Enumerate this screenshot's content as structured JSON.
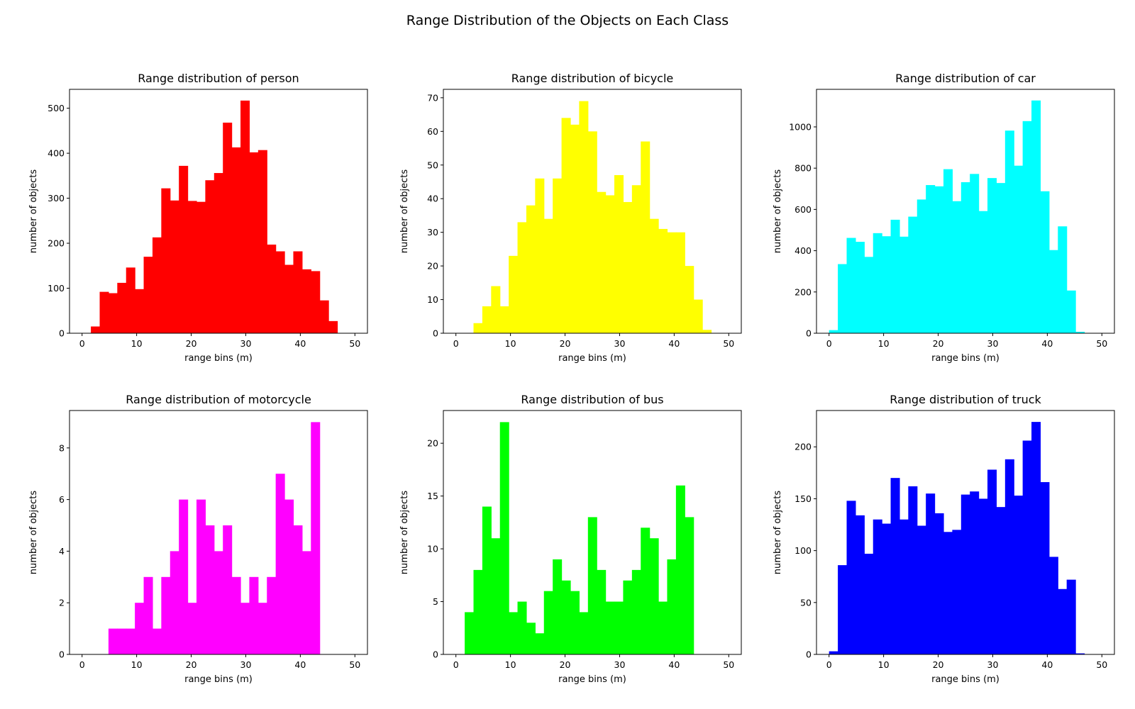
{
  "figure": {
    "title": "Range Distribution of the Objects on Each Class"
  },
  "chart_data": [
    {
      "type": "bar",
      "title": "Range distribution of person",
      "xlabel": "range bins (m)",
      "ylabel": "number of objects",
      "color": "#ff0000",
      "xlim": [
        -2.3,
        52.3
      ],
      "ylim": [
        0,
        542
      ],
      "xticks": [
        0,
        10,
        20,
        30,
        40,
        50
      ],
      "yticks": [
        0,
        100,
        200,
        300,
        400,
        500
      ],
      "bin_start": 0,
      "bin_width": 1.6129,
      "values": [
        0,
        15,
        92,
        89,
        112,
        146,
        98,
        170,
        213,
        322,
        295,
        372,
        294,
        292,
        340,
        356,
        468,
        413,
        517,
        402,
        407,
        197,
        182,
        152,
        182,
        142,
        138,
        73,
        27,
        0,
        0
      ]
    },
    {
      "type": "bar",
      "title": "Range distribution of bicycle",
      "xlabel": "range bins (m)",
      "ylabel": "number of objects",
      "color": "#ffff00",
      "xlim": [
        -2.3,
        52.3
      ],
      "ylim": [
        0,
        72.5
      ],
      "xticks": [
        0,
        10,
        20,
        30,
        40,
        50
      ],
      "yticks": [
        0,
        10,
        20,
        30,
        40,
        50,
        60,
        70
      ],
      "bin_start": 0,
      "bin_width": 1.6129,
      "values": [
        0,
        0,
        3,
        8,
        14,
        8,
        23,
        33,
        38,
        46,
        34,
        46,
        64,
        62,
        69,
        60,
        42,
        41,
        47,
        39,
        44,
        57,
        34,
        31,
        30,
        30,
        20,
        10,
        1,
        0,
        0
      ]
    },
    {
      "type": "bar",
      "title": "Range distribution of car",
      "xlabel": "range bins (m)",
      "ylabel": "number of objects",
      "color": "#00ffff",
      "xlim": [
        -2.3,
        52.3
      ],
      "ylim": [
        0,
        1182
      ],
      "xticks": [
        0,
        10,
        20,
        30,
        40,
        50
      ],
      "yticks": [
        0,
        200,
        400,
        600,
        800,
        1000
      ],
      "bin_start": 0,
      "bin_width": 1.6129,
      "values": [
        15,
        335,
        462,
        443,
        370,
        485,
        470,
        550,
        468,
        565,
        648,
        718,
        712,
        795,
        640,
        732,
        772,
        592,
        752,
        728,
        982,
        812,
        1028,
        1128,
        688,
        403,
        518,
        207,
        7,
        0,
        0
      ]
    },
    {
      "type": "bar",
      "title": "Range distribution of motorcycle",
      "xlabel": "range bins (m)",
      "ylabel": "number of objects",
      "color": "#ff00ff",
      "xlim": [
        -2.3,
        52.3
      ],
      "ylim": [
        0,
        9.45
      ],
      "xticks": [
        0,
        10,
        20,
        30,
        40,
        50
      ],
      "yticks": [
        0,
        2,
        4,
        6,
        8
      ],
      "bin_start": 0,
      "bin_width": 1.6129,
      "values": [
        0,
        0,
        0,
        1,
        1,
        1,
        2,
        3,
        1,
        3,
        4,
        6,
        2,
        6,
        5,
        4,
        5,
        3,
        2,
        3,
        2,
        3,
        7,
        6,
        5,
        4,
        9,
        0,
        0,
        0,
        0
      ]
    },
    {
      "type": "bar",
      "title": "Range distribution of bus",
      "xlabel": "range bins (m)",
      "ylabel": "number of objects",
      "color": "#00ff00",
      "xlim": [
        -2.3,
        52.3
      ],
      "ylim": [
        0,
        23.1
      ],
      "xticks": [
        0,
        10,
        20,
        30,
        40,
        50
      ],
      "yticks": [
        0,
        5,
        10,
        15,
        20
      ],
      "bin_start": 0,
      "bin_width": 1.6129,
      "values": [
        0,
        4,
        8,
        14,
        11,
        22,
        4,
        5,
        3,
        2,
        6,
        9,
        7,
        6,
        4,
        13,
        8,
        5,
        5,
        7,
        8,
        12,
        11,
        5,
        9,
        16,
        13,
        0,
        0,
        0,
        0
      ]
    },
    {
      "type": "bar",
      "title": "Range distribution of truck",
      "xlabel": "range bins (m)",
      "ylabel": "number of objects",
      "color": "#0000ff",
      "xlim": [
        -2.3,
        52.3
      ],
      "ylim": [
        0,
        235
      ],
      "xticks": [
        0,
        10,
        20,
        30,
        40,
        50
      ],
      "yticks": [
        0,
        50,
        100,
        150,
        200
      ],
      "bin_start": 0,
      "bin_width": 1.6129,
      "values": [
        3,
        86,
        148,
        134,
        97,
        130,
        126,
        170,
        130,
        162,
        124,
        155,
        136,
        118,
        120,
        154,
        157,
        150,
        178,
        142,
        188,
        153,
        206,
        224,
        166,
        94,
        63,
        72,
        1,
        0,
        0
      ]
    }
  ]
}
